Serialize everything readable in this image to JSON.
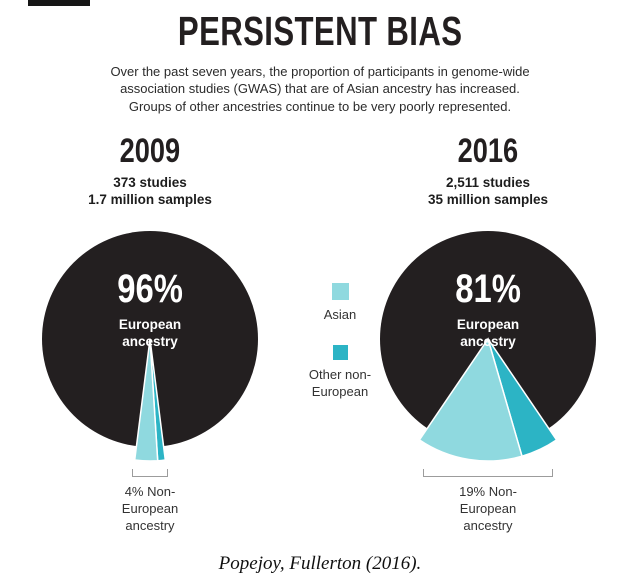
{
  "title": "PERSISTENT BIAS",
  "subtitle_lines": [
    "Over the past seven years, the proportion of participants in genome-wide",
    "association studies (GWAS) that are of Asian ancestry has increased.",
    "Groups of other ancestries continue to be very poorly represented."
  ],
  "legend": {
    "asian_label": "Asian",
    "other_label": "Other non-European",
    "asian_color": "#8fd9df",
    "other_color": "#2cb4c5"
  },
  "colors": {
    "pie_black": "#231f20",
    "asian": "#8fd9df",
    "other_non_european": "#2cb4c5",
    "background": "#ffffff"
  },
  "charts": [
    {
      "year": "2009",
      "studies": "373 studies",
      "samples": "1.7 million samples",
      "european_pct": "96%",
      "european_label": "European ancestry",
      "non_european_label": "4% Non-European ancestry"
    },
    {
      "year": "2016",
      "studies": "2,511 studies",
      "samples": "35 million samples",
      "european_pct": "81%",
      "european_label": "European ancestry",
      "non_european_label": "19% Non-European ancestry"
    }
  ],
  "caption": "Popejoy, Fullerton (2016).",
  "chart_data": [
    {
      "type": "pie",
      "title": "2009",
      "subtitle": [
        "373 studies",
        "1.7 million samples"
      ],
      "slices": [
        {
          "label": "European ancestry",
          "value": 96,
          "color": "#231f20"
        },
        {
          "label": "Asian",
          "value": 3,
          "color": "#8fd9df"
        },
        {
          "label": "Other non-European",
          "value": 1,
          "color": "#2cb4c5"
        }
      ],
      "annotations": [
        "96% European ancestry",
        "4% Non-European ancestry"
      ],
      "legend_position": "center-between-pies",
      "grid": false
    },
    {
      "type": "pie",
      "title": "2016",
      "subtitle": [
        "2,511 studies",
        "35 million samples"
      ],
      "slices": [
        {
          "label": "European ancestry",
          "value": 81,
          "color": "#231f20"
        },
        {
          "label": "Asian",
          "value": 14,
          "color": "#8fd9df"
        },
        {
          "label": "Other non-European",
          "value": 5,
          "color": "#2cb4c5"
        }
      ],
      "annotations": [
        "81% European ancestry",
        "19% Non-European ancestry"
      ],
      "legend_position": "center-between-pies",
      "grid": false
    }
  ]
}
